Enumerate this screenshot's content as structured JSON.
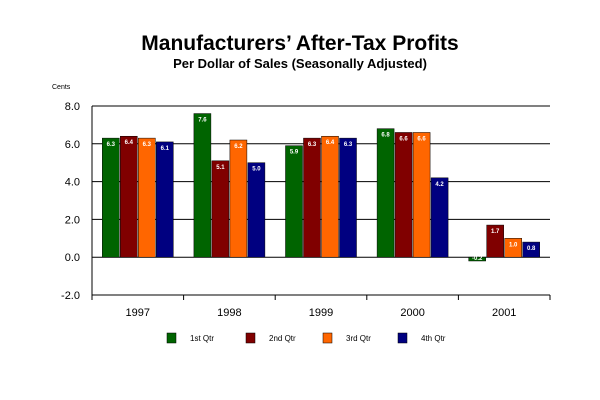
{
  "chart_data": {
    "type": "bar",
    "title": "Manufacturers’ After-Tax Profits",
    "subtitle": "Per Dollar of Sales (Seasonally Adjusted)",
    "ylabel": "Cents",
    "xlabel": "",
    "ylim": [
      -2.0,
      8.0
    ],
    "yticks": [
      -2.0,
      0.0,
      2.0,
      4.0,
      6.0,
      8.0
    ],
    "ytick_labels": [
      "-2.0",
      "0.0",
      "2.0",
      "4.0",
      "6.0",
      "8.0"
    ],
    "grid": true,
    "legend_position": "bottom",
    "categories": [
      "1997",
      "1998",
      "1999",
      "2000",
      "2001"
    ],
    "series": [
      {
        "name": "1st Qtr",
        "color": "#006400",
        "values": [
          6.3,
          7.6,
          5.9,
          6.8,
          -0.2
        ],
        "labels": [
          "6.3",
          "7.6",
          "5.9",
          "6.8",
          "-0.2"
        ]
      },
      {
        "name": "2nd Qtr",
        "color": "#800000",
        "values": [
          6.4,
          5.1,
          6.3,
          6.6,
          1.7
        ],
        "labels": [
          "6.4",
          "5.1",
          "6.3",
          "6.6",
          "1.7"
        ]
      },
      {
        "name": "3rd Qtr",
        "color": "#ff6600",
        "values": [
          6.3,
          6.2,
          6.4,
          6.6,
          1.0
        ],
        "labels": [
          "6.3",
          "6.2",
          "6.4",
          "6.6",
          "1.0"
        ]
      },
      {
        "name": "4th Qtr",
        "color": "#000080",
        "values": [
          6.1,
          5.0,
          6.3,
          4.2,
          0.8
        ],
        "labels": [
          "6.1",
          "5.0",
          "6.3",
          "4.2",
          "0.8"
        ]
      }
    ]
  }
}
